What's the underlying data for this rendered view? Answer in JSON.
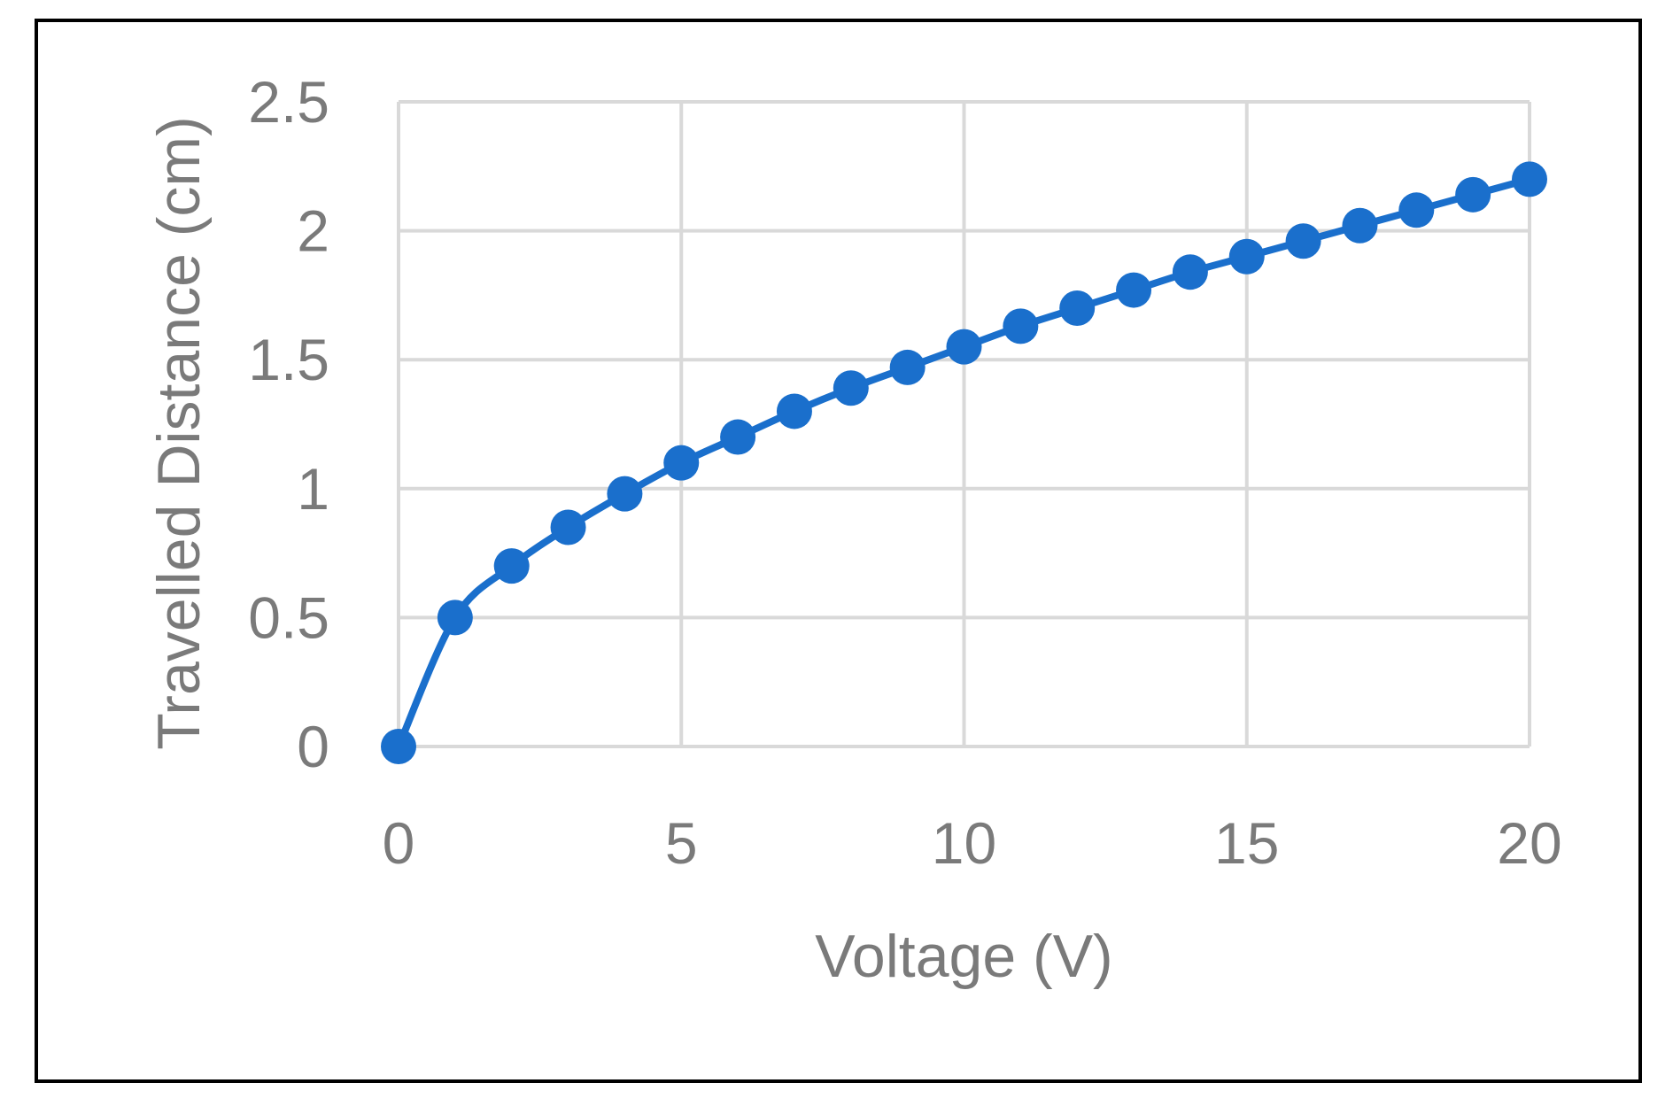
{
  "chart_data": {
    "type": "line",
    "xlabel": "Voltage (V)",
    "ylabel": "Travelled Distance (cm)",
    "xlim": [
      0,
      20
    ],
    "ylim": [
      0,
      2.5
    ],
    "x_ticks": [
      "0",
      "5",
      "10",
      "15",
      "20"
    ],
    "y_ticks": [
      "0",
      "0.5",
      "1",
      "1.5",
      "2",
      "2.5"
    ],
    "grid": true,
    "smooth": true,
    "markers": true,
    "series": [
      {
        "color": "#1a6fcc",
        "x": [
          0,
          1,
          2,
          3,
          4,
          5,
          6,
          7,
          8,
          9,
          10,
          11,
          12,
          13,
          14,
          15,
          16,
          17,
          18,
          19,
          20
        ],
        "y": [
          0,
          0.5,
          0.7,
          0.85,
          0.98,
          1.1,
          1.2,
          1.3,
          1.39,
          1.47,
          1.55,
          1.63,
          1.7,
          1.77,
          1.84,
          1.9,
          1.96,
          2.02,
          2.08,
          2.14,
          2.2
        ]
      }
    ]
  }
}
